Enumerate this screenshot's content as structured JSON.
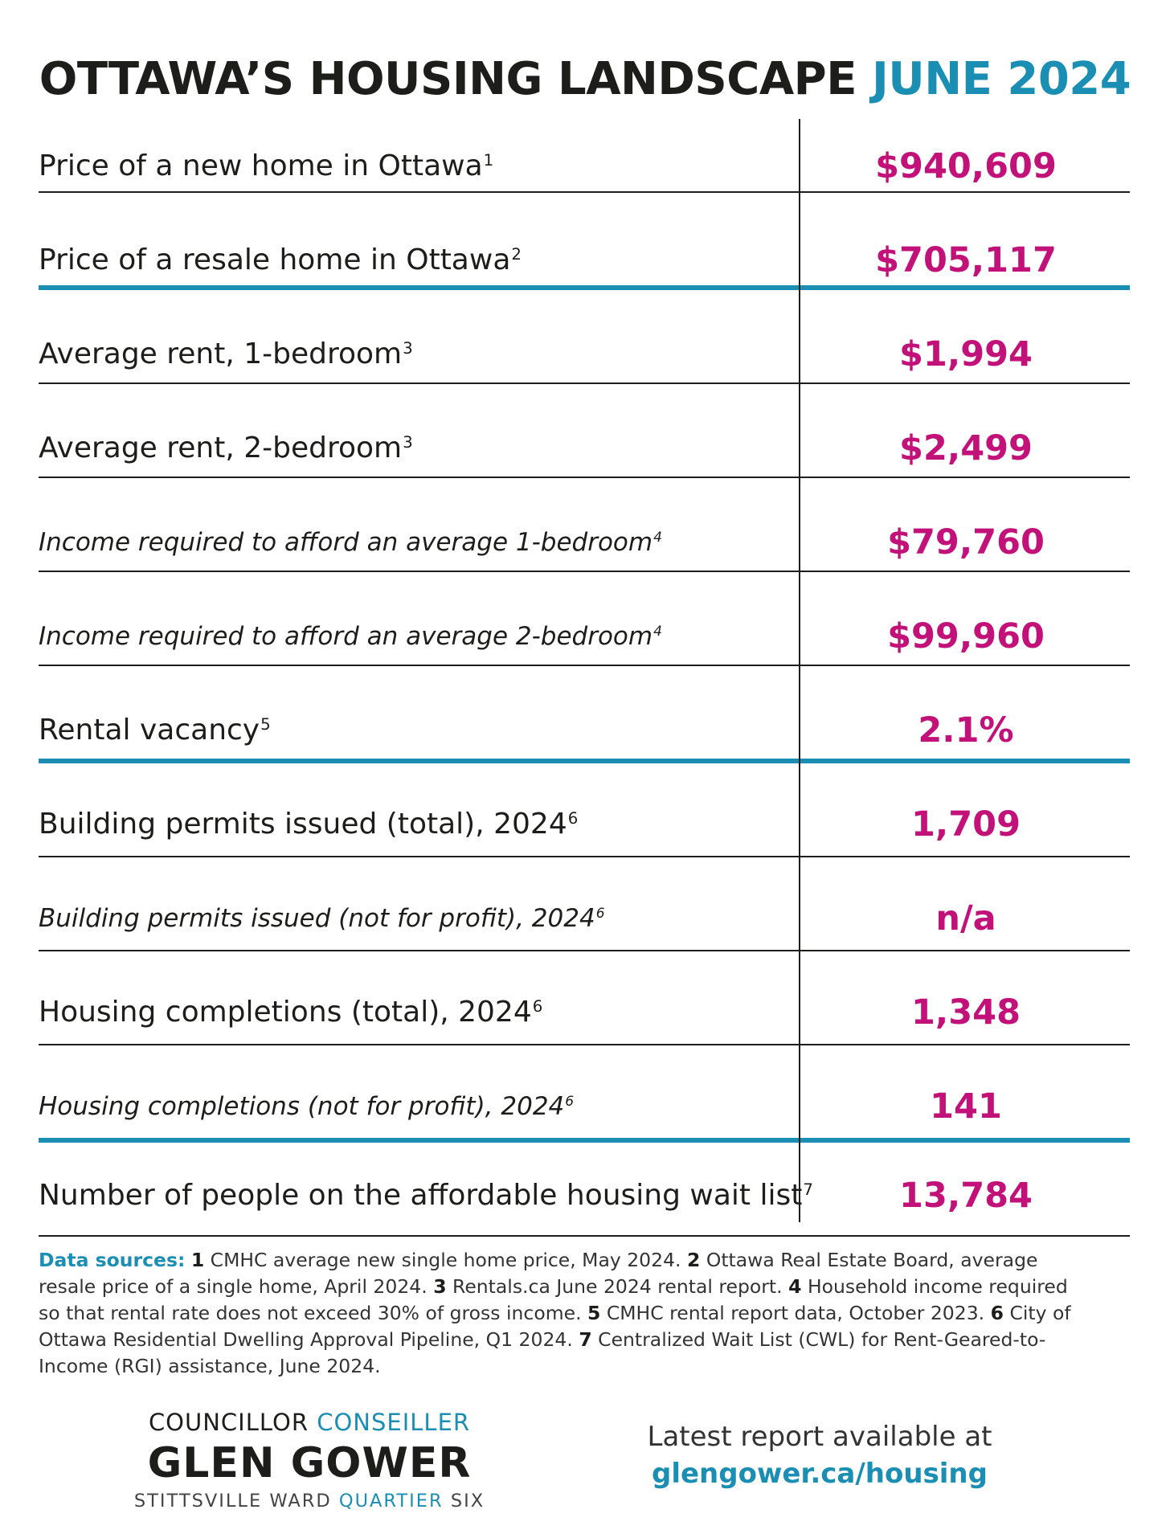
{
  "header": {
    "title_main": "OTTAWA’S HOUSING LANDSCAPE",
    "title_date": "JUNE 2024"
  },
  "rows": [
    {
      "label": "Price of a new home in Ottawa",
      "note": "1",
      "value": "$940,609",
      "italic": false
    },
    {
      "label": "Price of a resale home in Ottawa",
      "note": "2",
      "value": "$705,117",
      "italic": false
    },
    {
      "label": "Average rent, 1-bedroom",
      "note": "3",
      "value": "$1,994",
      "italic": false
    },
    {
      "label": "Average rent, 2-bedroom",
      "note": "3",
      "value": "$2,499",
      "italic": false
    },
    {
      "label": "Income required to afford an average 1-bedroom",
      "note": "4",
      "value": "$79,760",
      "italic": true
    },
    {
      "label": "Income required to afford an average 2-bedroom",
      "note": "4",
      "value": "$99,960",
      "italic": true
    },
    {
      "label": "Rental vacancy",
      "note": "5",
      "value": "2.1%",
      "italic": false
    },
    {
      "label": "Building permits issued (total), 2024",
      "note": "6",
      "value": "1,709",
      "italic": false
    },
    {
      "label": "Building permits issued (not for profit), 2024",
      "note": "6",
      "value": "n/a",
      "italic": true
    },
    {
      "label": "Housing completions (total), 2024",
      "note": "6",
      "value": "1,348",
      "italic": false
    },
    {
      "label": "Housing completions (not for profit), 2024",
      "note": "6",
      "value": "141",
      "italic": true
    },
    {
      "label": "Number of people on the affordable housing wait list",
      "note": "7",
      "value": "13,784",
      "italic": false
    }
  ],
  "sources": {
    "lead": "Data sources:",
    "items": [
      {
        "num": "1",
        "text": "CMHC average new single home price, May 2024."
      },
      {
        "num": "2",
        "text": "Ottawa Real Estate Board, average resale price of a single home, April 2024."
      },
      {
        "num": "3",
        "text": "Rentals.ca June 2024 rental report."
      },
      {
        "num": "4",
        "text": "Household income required so that rental rate does not exceed 30% of gross income."
      },
      {
        "num": "5",
        "text": "CMHC rental report data, October 2023."
      },
      {
        "num": "6",
        "text": "City of Ottawa Residential Dwelling Approval Pipeline, Q1 2024."
      },
      {
        "num": "7",
        "text": "Centralized Wait List (CWL) for Rent-Geared-to-Income (RGI) assistance, June 2024."
      }
    ]
  },
  "footer": {
    "title_en": "COUNCILLOR",
    "title_fr": "CONSEILLER",
    "name": "GLEN GOWER",
    "ward_en": "STITTSVILLE WARD",
    "ward_fr": "QUARTIER",
    "ward_num": "SIX",
    "report_text": "Latest report available at",
    "report_link": "glengower.ca/housing"
  },
  "colors": {
    "accent_blue": "#1a8eb3",
    "value_magenta": "#c2127a",
    "text_dark": "#1d1d1b"
  }
}
